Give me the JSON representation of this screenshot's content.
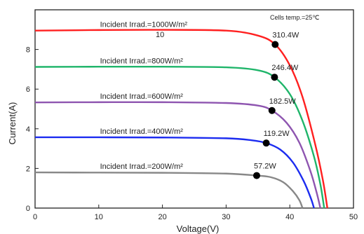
{
  "chart_data": {
    "type": "line",
    "title": "",
    "xlabel": "Voltage(V)",
    "ylabel": "Current(A)",
    "xlim": [
      0,
      50
    ],
    "ylim": [
      0,
      10
    ],
    "x_ticks": [
      0,
      10,
      20,
      30,
      40,
      50
    ],
    "y_ticks": [
      0,
      2,
      4,
      6,
      8
    ],
    "grid": false,
    "annotation": "Cells temp.=25℃",
    "stray_label": "10",
    "series": [
      {
        "name": "Incident Irrad.=1000W/m²",
        "color": "#ff2020",
        "points": [
          [
            0,
            8.95
          ],
          [
            10,
            8.98
          ],
          [
            20,
            8.99
          ],
          [
            30,
            8.95
          ],
          [
            35,
            8.7
          ],
          [
            37.7,
            8.25
          ],
          [
            40,
            7.2
          ],
          [
            42,
            5.6
          ],
          [
            44,
            3.2
          ],
          [
            45.2,
            1.4
          ],
          [
            45.9,
            0
          ]
        ],
        "mpp": {
          "x": 37.7,
          "y": 8.25,
          "label": "310.4W"
        }
      },
      {
        "name": "Incident Irrad.=800W/m²",
        "color": "#1fb56a",
        "points": [
          [
            0,
            7.12
          ],
          [
            10,
            7.13
          ],
          [
            20,
            7.13
          ],
          [
            30,
            7.1
          ],
          [
            35,
            6.95
          ],
          [
            37.6,
            6.6
          ],
          [
            40,
            5.75
          ],
          [
            42,
            4.4
          ],
          [
            43.8,
            2.6
          ],
          [
            44.8,
            1.2
          ],
          [
            45.4,
            0
          ]
        ],
        "mpp": {
          "x": 37.6,
          "y": 6.6,
          "label": "246.4W"
        }
      },
      {
        "name": "Incident Irrad.=600W/m²",
        "color": "#8e55b0",
        "points": [
          [
            0,
            5.33
          ],
          [
            10,
            5.34
          ],
          [
            20,
            5.34
          ],
          [
            30,
            5.3
          ],
          [
            35,
            5.17
          ],
          [
            37.2,
            4.92
          ],
          [
            39.5,
            4.3
          ],
          [
            41.5,
            3.3
          ],
          [
            43.2,
            1.9
          ],
          [
            44.2,
            0.8
          ],
          [
            44.8,
            0
          ]
        ],
        "mpp": {
          "x": 37.2,
          "y": 4.92,
          "label": "182.5W"
        }
      },
      {
        "name": "Incident Irrad.=400W/m²",
        "color": "#1c2cf0",
        "points": [
          [
            0,
            3.57
          ],
          [
            10,
            3.57
          ],
          [
            20,
            3.56
          ],
          [
            30,
            3.52
          ],
          [
            34,
            3.42
          ],
          [
            36.3,
            3.28
          ],
          [
            38.5,
            2.95
          ],
          [
            40.5,
            2.3
          ],
          [
            42.2,
            1.35
          ],
          [
            43.3,
            0.5
          ],
          [
            43.8,
            0
          ]
        ],
        "mpp": {
          "x": 36.3,
          "y": 3.28,
          "label": "119.2W"
        }
      },
      {
        "name": "Incident Irrad.=200W/m²",
        "color": "#888888",
        "points": [
          [
            0,
            1.8
          ],
          [
            10,
            1.79
          ],
          [
            20,
            1.78
          ],
          [
            30,
            1.74
          ],
          [
            34.8,
            1.64
          ],
          [
            37,
            1.56
          ],
          [
            39,
            1.3
          ],
          [
            40.5,
            0.85
          ],
          [
            41.5,
            0.4
          ],
          [
            42,
            0
          ]
        ],
        "mpp": {
          "x": 34.8,
          "y": 1.64,
          "label": "57.2W"
        }
      }
    ]
  }
}
